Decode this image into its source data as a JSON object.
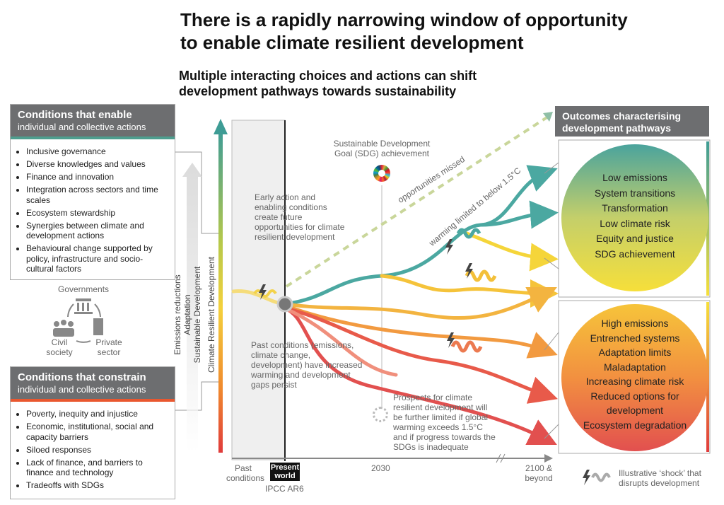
{
  "title": [
    "There is a rapidly narrowing window of opportunity",
    "to enable climate resilient development"
  ],
  "subtitle": [
    "Multiple interacting choices and actions can shift",
    "development pathways towards sustainability"
  ],
  "enable": {
    "heading": "Conditions that enable",
    "subheading": "individual and collective actions",
    "items": [
      "Inclusive governance",
      "Diverse knowledges and values",
      "Finance and innovation",
      "Integration across sectors and time scales",
      "Ecosystem stewardship",
      "Synergies between climate and development actions",
      "Behavioural change supported by policy, infrastructure and socio-cultural factors"
    ]
  },
  "actors": {
    "governments": "Governments",
    "civil_society": "Civil society",
    "private_sector": "Private sector"
  },
  "constrain": {
    "heading": "Conditions that constrain",
    "subheading": "individual and collective actions",
    "items": [
      "Poverty, inequity and injustice",
      "Economic, institutional, social and capacity barriers",
      "Siloed responses",
      "Lack of finance, and barriers to finance and technology",
      "Tradeoffs with SDGs"
    ]
  },
  "axis_labels": [
    "Emissions reductions",
    "Adaptation",
    "Sustainable Development",
    "Climate Resilient Development"
  ],
  "annotations": {
    "sdg": "Sustainable Development Goal (SDG) achievement",
    "early": "Early action and enabling conditions create future opportunities for climate resilient development",
    "missed": "opportunities missed",
    "warming": "warming limited to below 1.5°C",
    "past": "Past conditions (emissions, climate change, development) have increased warming and development gaps persist",
    "prospects": "Prospects for climate resilient development will be further limited if global warming exceeds 1.5°C and if progress towards the SDGs is inadequate"
  },
  "timeline": {
    "past": "Past conditions",
    "present": "Present world",
    "report": "IPCC AR6",
    "mid": "2030",
    "end": "2100 & beyond"
  },
  "outcomes": {
    "heading": "Outcomes characterising development pathways",
    "positive": [
      "Low emissions",
      "System transitions",
      "Transformation",
      "Low climate risk",
      "Equity and justice",
      "SDG achievement"
    ],
    "negative": [
      "High emissions",
      "Entrenched systems",
      "Adaptation limits",
      "Maladaptation",
      "Increasing climate risk",
      "Reduced options for development",
      "Ecosystem degradation"
    ]
  },
  "legend": "Illustrative ‘shock’ that disrupts development"
}
